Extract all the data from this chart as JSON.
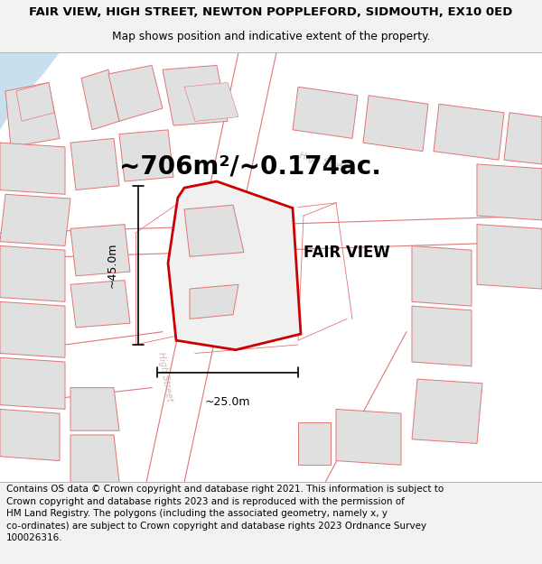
{
  "title_line1": "FAIR VIEW, HIGH STREET, NEWTON POPPLEFORD, SIDMOUTH, EX10 0ED",
  "title_line2": "Map shows position and indicative extent of the property.",
  "area_text": "~706m²/~0.174ac.",
  "property_label": "FAIR VIEW",
  "dim_horizontal": "~25.0m",
  "dim_vertical": "~45.0m",
  "street_label_diagonal": "High Street",
  "street_label_vertical": "High Street",
  "footer_line1": "Contains OS data © Crown copyright and database right 2021. This information is subject to",
  "footer_line2": "Crown copyright and database rights 2023 and is reproduced with the permission of",
  "footer_line3": "HM Land Registry. The polygons (including the associated geometry, namely x, y",
  "footer_line4": "co-ordinates) are subject to Crown copyright and database rights 2023 Ordnance Survey",
  "footer_line5": "100026316.",
  "bg_color": "#f2f2f2",
  "map_bg": "#ffffff",
  "building_fill": "#e0e0e0",
  "building_stroke": "#e07575",
  "highlight_fill": "#f0f0f0",
  "highlight_stroke": "#cc0000",
  "road_stroke": "#e07575",
  "water_fill": "#c8dff0",
  "dim_color": "#000000",
  "text_color": "#000000",
  "street_text_color": "#c8b8b8",
  "title_fontsize": 9.5,
  "subtitle_fontsize": 8.8,
  "area_fontsize": 20,
  "label_fontsize": 12,
  "footer_fontsize": 7.5
}
